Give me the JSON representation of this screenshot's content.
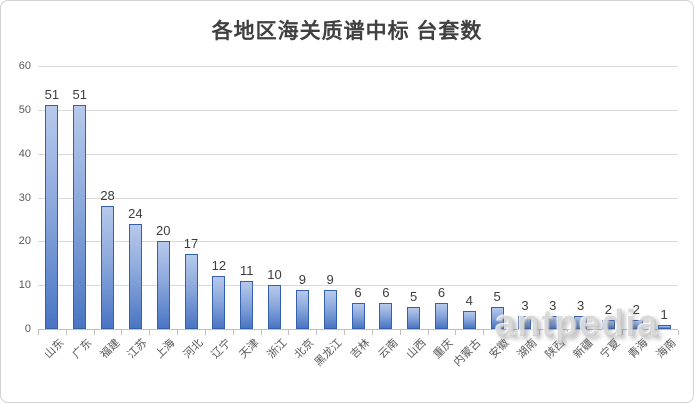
{
  "title": "各地区海关质谱中标 台套数",
  "watermark": "antpedia",
  "colors": {
    "bar_gradient_top": "#b7c9ec",
    "bar_gradient_bottom": "#4a75c4",
    "bar_border": "#3561ac",
    "gridline": "#d9d9d9",
    "axis_line": "#bfbfbf",
    "title_text": "#404040",
    "axis_tick_text": "#595959",
    "data_label_text": "#3d3d3d",
    "watermark_text": "#bebebe"
  },
  "chart_data": {
    "type": "bar",
    "title": "各地区海关质谱中标 台套数",
    "categories": [
      "山东",
      "广东",
      "福建",
      "江苏",
      "上海",
      "河北",
      "辽宁",
      "天津",
      "浙江",
      "北京",
      "黑龙江",
      "吉林",
      "云南",
      "山西",
      "重庆",
      "内蒙古",
      "安徽",
      "湖南",
      "陕西",
      "新疆",
      "宁夏",
      "青海",
      "海南"
    ],
    "values": [
      51,
      51,
      28,
      24,
      20,
      17,
      12,
      11,
      10,
      9,
      9,
      6,
      6,
      5,
      6,
      4,
      5,
      3,
      3,
      3,
      2,
      2,
      1
    ],
    "xlabel": "",
    "ylabel": "",
    "ylim": [
      0,
      60
    ],
    "yticks": [
      0,
      10,
      20,
      30,
      40,
      50,
      60
    ],
    "grid": true,
    "legend": false,
    "data_labels": true,
    "x_label_rotation": 45
  }
}
